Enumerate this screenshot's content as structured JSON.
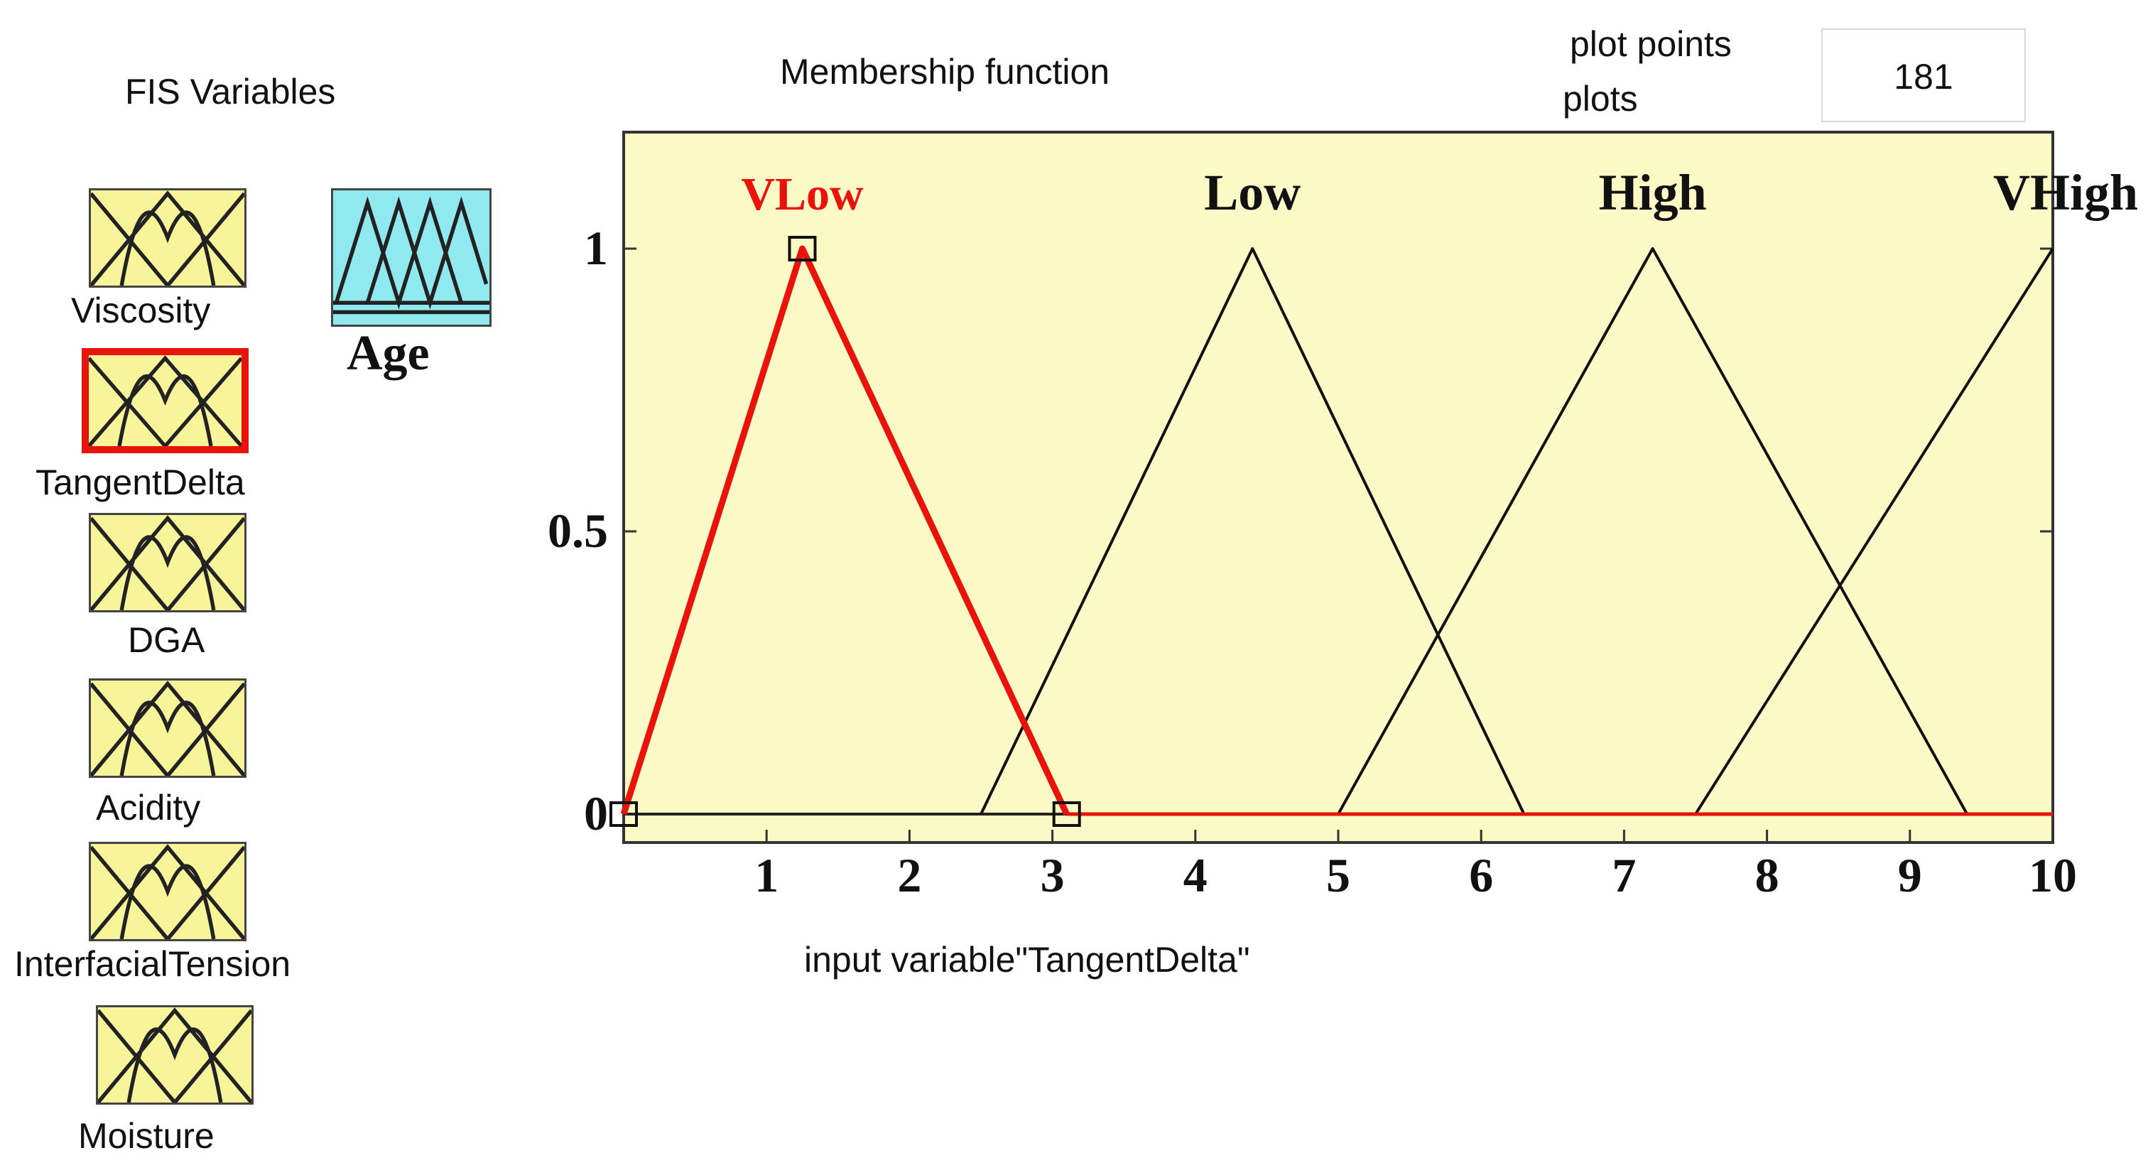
{
  "left_panel": {
    "title": "FIS Variables",
    "inputs": [
      {
        "label": "Viscosity",
        "selected": false
      },
      {
        "label": "TangentDelta",
        "selected": true
      },
      {
        "label": "DGA",
        "selected": false
      },
      {
        "label": "Acidity",
        "selected": false
      },
      {
        "label": "InterfacialTension",
        "selected": false
      },
      {
        "label": "Moisture",
        "selected": false
      }
    ],
    "output": {
      "label": "Age"
    }
  },
  "header": {
    "title": "Membership function",
    "plot_points_label": "plot points",
    "plots_label": "plots",
    "plot_points_value": "181"
  },
  "colors": {
    "plot_background": "#fbf9c6",
    "input_icon_fill": "#f8f49a",
    "output_icon_fill": "#8fe9ee",
    "selected": "#e8140c",
    "line": "#111111"
  },
  "chart_data": {
    "type": "line",
    "xlabel": "input variable\"TangentDelta\"",
    "xlim": [
      0,
      10
    ],
    "ylim": [
      0,
      1.2
    ],
    "xticks": [
      1,
      2,
      3,
      4,
      5,
      6,
      7,
      8,
      9,
      10
    ],
    "yticks": [
      0,
      0.5,
      1
    ],
    "ytick_labels": [
      "0",
      "0.5",
      "1"
    ],
    "series": [
      {
        "name": "VLow",
        "points": [
          [
            0,
            0
          ],
          [
            1.25,
            1
          ],
          [
            3.1,
            0
          ]
        ],
        "selected": true
      },
      {
        "name": "Low",
        "points": [
          [
            2.5,
            0
          ],
          [
            4.4,
            1
          ],
          [
            6.3,
            0
          ]
        ],
        "selected": false
      },
      {
        "name": "High",
        "points": [
          [
            5.0,
            0
          ],
          [
            7.2,
            1
          ],
          [
            9.4,
            0
          ]
        ],
        "selected": false
      },
      {
        "name": "VHigh",
        "points": [
          [
            7.5,
            0
          ],
          [
            10,
            1
          ]
        ],
        "selected": false
      }
    ]
  }
}
